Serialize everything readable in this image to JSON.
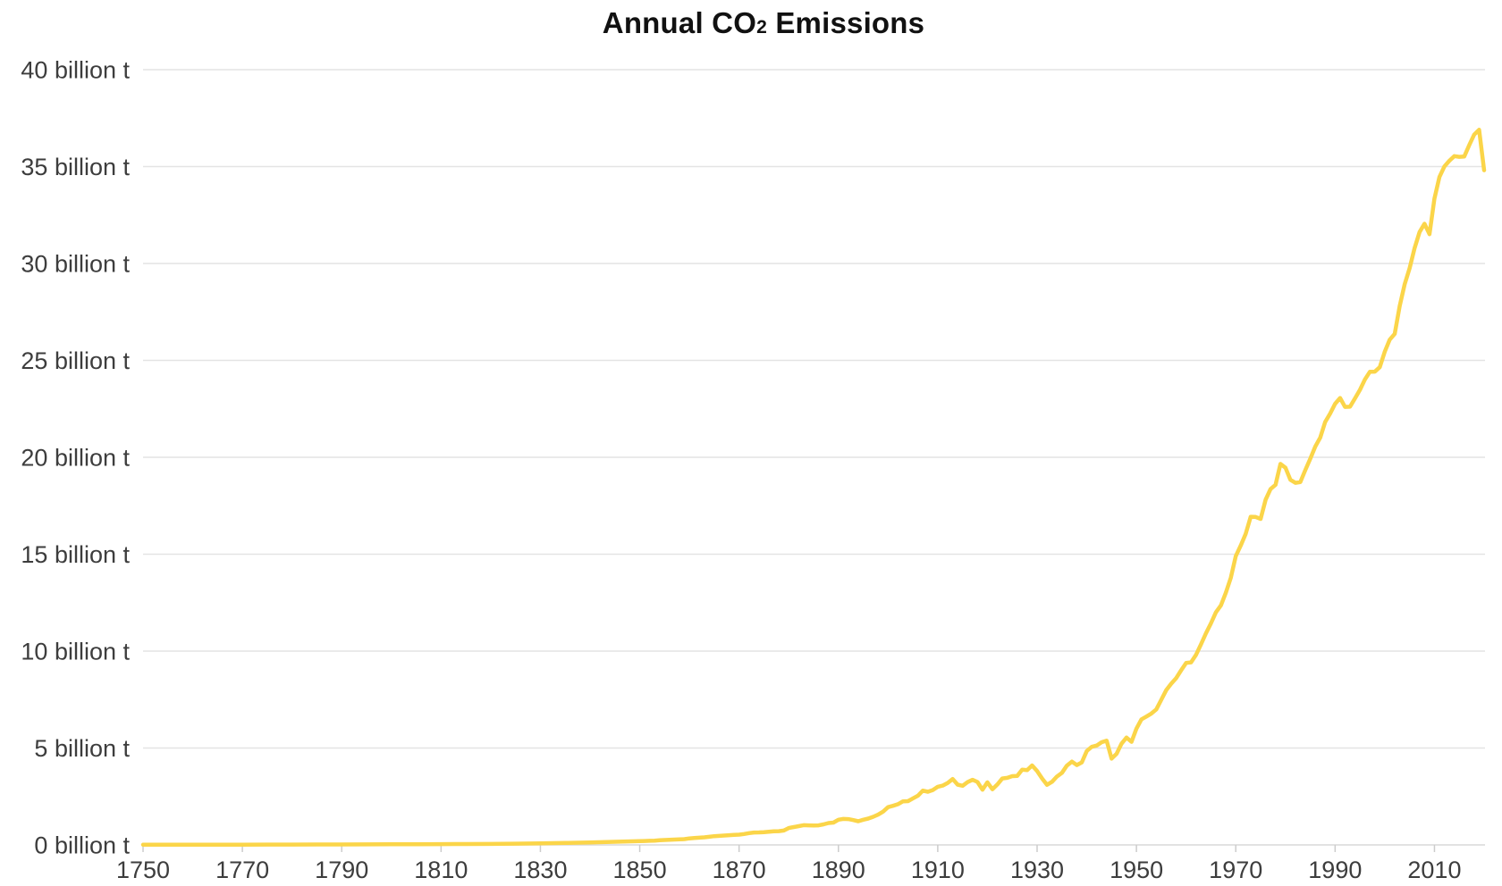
{
  "title": {
    "prefix": "Annual CO",
    "subscript": "2",
    "suffix": " Emissions"
  },
  "colors": {
    "line": "#FBD549",
    "grid": "#e4e4e4",
    "zero_line": "#d9d9d9",
    "tick": "#cccccc",
    "axis_label": "#3d3d3d",
    "title": "#111111",
    "background": "#ffffff"
  },
  "y_axis": {
    "unit": "billion t",
    "ticks": [
      {
        "value": 0,
        "label": "0 billion t"
      },
      {
        "value": 5,
        "label": "5 billion t"
      },
      {
        "value": 10,
        "label": "10 billion t"
      },
      {
        "value": 15,
        "label": "15 billion t"
      },
      {
        "value": 20,
        "label": "20 billion t"
      },
      {
        "value": 25,
        "label": "25 billion t"
      },
      {
        "value": 30,
        "label": "30 billion t"
      },
      {
        "value": 35,
        "label": "35 billion t"
      },
      {
        "value": 40,
        "label": "40 billion t"
      }
    ]
  },
  "x_axis": {
    "ticks": [
      {
        "value": 1750,
        "label": "1750"
      },
      {
        "value": 1770,
        "label": "1770"
      },
      {
        "value": 1790,
        "label": "1790"
      },
      {
        "value": 1810,
        "label": "1810"
      },
      {
        "value": 1830,
        "label": "1830"
      },
      {
        "value": 1850,
        "label": "1850"
      },
      {
        "value": 1870,
        "label": "1870"
      },
      {
        "value": 1890,
        "label": "1890"
      },
      {
        "value": 1910,
        "label": "1910"
      },
      {
        "value": 1930,
        "label": "1930"
      },
      {
        "value": 1950,
        "label": "1950"
      },
      {
        "value": 1970,
        "label": "1970"
      },
      {
        "value": 1990,
        "label": "1990"
      },
      {
        "value": 2010,
        "label": "2010"
      }
    ]
  },
  "chart_data": {
    "type": "line",
    "title": "Annual CO₂ Emissions",
    "xlabel": "",
    "ylabel": "",
    "unit": "billion tonnes CO₂",
    "xlim": [
      1750,
      2020
    ],
    "ylim": [
      0,
      40
    ],
    "grid": "horizontal",
    "legend": "none",
    "series": [
      {
        "name": "Annual CO₂ emissions",
        "color": "#FBD549",
        "points": [
          [
            1750,
            0.009
          ],
          [
            1755,
            0.01
          ],
          [
            1760,
            0.011
          ],
          [
            1765,
            0.013
          ],
          [
            1770,
            0.015
          ],
          [
            1775,
            0.017
          ],
          [
            1780,
            0.019
          ],
          [
            1785,
            0.022
          ],
          [
            1790,
            0.025
          ],
          [
            1795,
            0.028
          ],
          [
            1800,
            0.03
          ],
          [
            1805,
            0.034
          ],
          [
            1810,
            0.04
          ],
          [
            1815,
            0.045
          ],
          [
            1820,
            0.052
          ],
          [
            1825,
            0.065
          ],
          [
            1830,
            0.084
          ],
          [
            1835,
            0.102
          ],
          [
            1840,
            0.13
          ],
          [
            1845,
            0.16
          ],
          [
            1850,
            0.197
          ],
          [
            1851,
            0.203
          ],
          [
            1852,
            0.212
          ],
          [
            1853,
            0.222
          ],
          [
            1854,
            0.24
          ],
          [
            1855,
            0.253
          ],
          [
            1856,
            0.268
          ],
          [
            1857,
            0.277
          ],
          [
            1858,
            0.285
          ],
          [
            1859,
            0.3
          ],
          [
            1860,
            0.335
          ],
          [
            1861,
            0.356
          ],
          [
            1862,
            0.372
          ],
          [
            1863,
            0.394
          ],
          [
            1864,
            0.42
          ],
          [
            1865,
            0.45
          ],
          [
            1866,
            0.464
          ],
          [
            1867,
            0.482
          ],
          [
            1868,
            0.5
          ],
          [
            1869,
            0.52
          ],
          [
            1870,
            0.528
          ],
          [
            1871,
            0.56
          ],
          [
            1872,
            0.61
          ],
          [
            1873,
            0.64
          ],
          [
            1874,
            0.645
          ],
          [
            1875,
            0.66
          ],
          [
            1876,
            0.68
          ],
          [
            1877,
            0.7
          ],
          [
            1878,
            0.71
          ],
          [
            1879,
            0.74
          ],
          [
            1880,
            0.87
          ],
          [
            1881,
            0.92
          ],
          [
            1882,
            0.97
          ],
          [
            1883,
            1.02
          ],
          [
            1884,
            1.01
          ],
          [
            1885,
            1.0
          ],
          [
            1886,
            1.01
          ],
          [
            1887,
            1.06
          ],
          [
            1888,
            1.13
          ],
          [
            1889,
            1.15
          ],
          [
            1890,
            1.3
          ],
          [
            1891,
            1.34
          ],
          [
            1892,
            1.33
          ],
          [
            1893,
            1.28
          ],
          [
            1894,
            1.22
          ],
          [
            1895,
            1.3
          ],
          [
            1896,
            1.36
          ],
          [
            1897,
            1.45
          ],
          [
            1898,
            1.56
          ],
          [
            1899,
            1.72
          ],
          [
            1900,
            1.95
          ],
          [
            1901,
            2.02
          ],
          [
            1902,
            2.1
          ],
          [
            1903,
            2.25
          ],
          [
            1904,
            2.26
          ],
          [
            1905,
            2.4
          ],
          [
            1906,
            2.54
          ],
          [
            1907,
            2.8
          ],
          [
            1908,
            2.74
          ],
          [
            1909,
            2.83
          ],
          [
            1910,
            3.0
          ],
          [
            1911,
            3.06
          ],
          [
            1912,
            3.2
          ],
          [
            1913,
            3.4
          ],
          [
            1914,
            3.11
          ],
          [
            1915,
            3.05
          ],
          [
            1916,
            3.24
          ],
          [
            1917,
            3.36
          ],
          [
            1918,
            3.25
          ],
          [
            1919,
            2.85
          ],
          [
            1920,
            3.23
          ],
          [
            1921,
            2.87
          ],
          [
            1922,
            3.12
          ],
          [
            1923,
            3.43
          ],
          [
            1924,
            3.46
          ],
          [
            1925,
            3.55
          ],
          [
            1926,
            3.56
          ],
          [
            1927,
            3.88
          ],
          [
            1928,
            3.86
          ],
          [
            1929,
            4.1
          ],
          [
            1930,
            3.81
          ],
          [
            1931,
            3.43
          ],
          [
            1932,
            3.1
          ],
          [
            1933,
            3.26
          ],
          [
            1934,
            3.53
          ],
          [
            1935,
            3.72
          ],
          [
            1936,
            4.09
          ],
          [
            1937,
            4.3
          ],
          [
            1938,
            4.12
          ],
          [
            1939,
            4.26
          ],
          [
            1940,
            4.85
          ],
          [
            1941,
            5.06
          ],
          [
            1942,
            5.13
          ],
          [
            1943,
            5.3
          ],
          [
            1944,
            5.38
          ],
          [
            1945,
            4.45
          ],
          [
            1946,
            4.7
          ],
          [
            1947,
            5.22
          ],
          [
            1948,
            5.54
          ],
          [
            1949,
            5.32
          ],
          [
            1950,
            6.0
          ],
          [
            1951,
            6.48
          ],
          [
            1952,
            6.62
          ],
          [
            1953,
            6.78
          ],
          [
            1954,
            6.99
          ],
          [
            1955,
            7.49
          ],
          [
            1956,
            7.98
          ],
          [
            1957,
            8.32
          ],
          [
            1958,
            8.61
          ],
          [
            1959,
            9.01
          ],
          [
            1960,
            9.39
          ],
          [
            1961,
            9.42
          ],
          [
            1962,
            9.81
          ],
          [
            1963,
            10.35
          ],
          [
            1964,
            10.92
          ],
          [
            1965,
            11.43
          ],
          [
            1966,
            12.0
          ],
          [
            1967,
            12.36
          ],
          [
            1968,
            13.01
          ],
          [
            1969,
            13.79
          ],
          [
            1970,
            14.9
          ],
          [
            1971,
            15.45
          ],
          [
            1972,
            16.05
          ],
          [
            1973,
            16.93
          ],
          [
            1974,
            16.92
          ],
          [
            1975,
            16.82
          ],
          [
            1976,
            17.81
          ],
          [
            1977,
            18.36
          ],
          [
            1978,
            18.58
          ],
          [
            1979,
            19.66
          ],
          [
            1980,
            19.46
          ],
          [
            1981,
            18.84
          ],
          [
            1982,
            18.68
          ],
          [
            1983,
            18.72
          ],
          [
            1984,
            19.34
          ],
          [
            1985,
            19.93
          ],
          [
            1986,
            20.55
          ],
          [
            1987,
            21.02
          ],
          [
            1988,
            21.82
          ],
          [
            1989,
            22.26
          ],
          [
            1990,
            22.76
          ],
          [
            1991,
            23.06
          ],
          [
            1992,
            22.6
          ],
          [
            1993,
            22.61
          ],
          [
            1994,
            23.04
          ],
          [
            1995,
            23.48
          ],
          [
            1996,
            24.02
          ],
          [
            1997,
            24.41
          ],
          [
            1998,
            24.42
          ],
          [
            1999,
            24.65
          ],
          [
            2000,
            25.45
          ],
          [
            2001,
            26.07
          ],
          [
            2002,
            26.37
          ],
          [
            2003,
            27.81
          ],
          [
            2004,
            28.92
          ],
          [
            2005,
            29.76
          ],
          [
            2006,
            30.79
          ],
          [
            2007,
            31.62
          ],
          [
            2008,
            32.05
          ],
          [
            2009,
            31.51
          ],
          [
            2010,
            33.34
          ],
          [
            2011,
            34.46
          ],
          [
            2012,
            35.01
          ],
          [
            2013,
            35.3
          ],
          [
            2014,
            35.54
          ],
          [
            2015,
            35.5
          ],
          [
            2016,
            35.52
          ],
          [
            2017,
            36.1
          ],
          [
            2018,
            36.65
          ],
          [
            2019,
            36.9
          ],
          [
            2020,
            34.81
          ]
        ]
      }
    ]
  }
}
